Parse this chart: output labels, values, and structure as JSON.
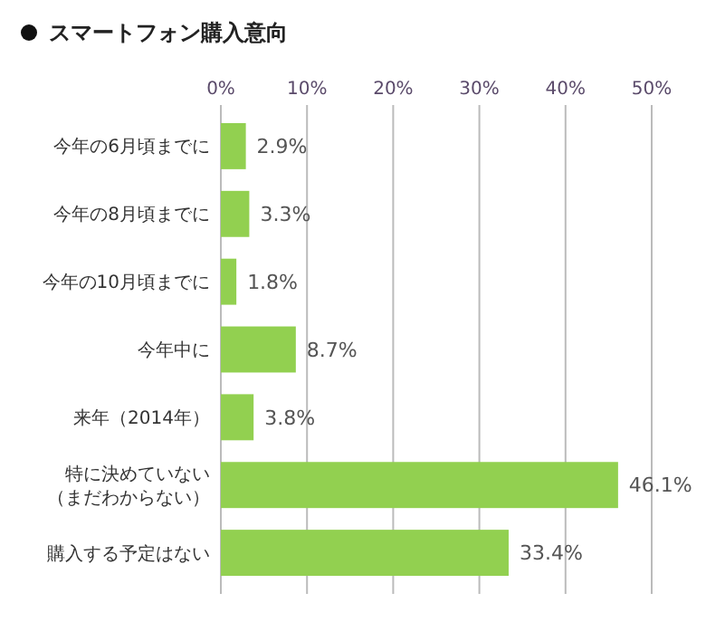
{
  "chart_data": {
    "type": "bar",
    "orientation": "horizontal",
    "title": "スマートフォン購入意向",
    "categories": [
      "今年の6月頃までに",
      "今年の8月頃までに",
      "今年の10月頃までに",
      "今年中に",
      "来年（2014年）",
      "特に決めていない（まだわからない）",
      "購入する予定はない"
    ],
    "values": [
      2.9,
      3.3,
      1.8,
      8.7,
      3.8,
      46.1,
      33.4
    ],
    "value_labels": [
      "2.9%",
      "3.3%",
      "1.8%",
      "8.7%",
      "3.8%",
      "46.1%",
      "33.4%"
    ],
    "color": "#92d050",
    "xlim": [
      0,
      50
    ],
    "xticks": [
      {
        "value": 0,
        "label": "0%"
      },
      {
        "value": 10,
        "label": "10%"
      },
      {
        "value": 20,
        "label": "20%"
      },
      {
        "value": 30,
        "label": "30%"
      },
      {
        "value": 40,
        "label": "40%"
      },
      {
        "value": 50,
        "label": "50%"
      }
    ],
    "grid": "x"
  }
}
